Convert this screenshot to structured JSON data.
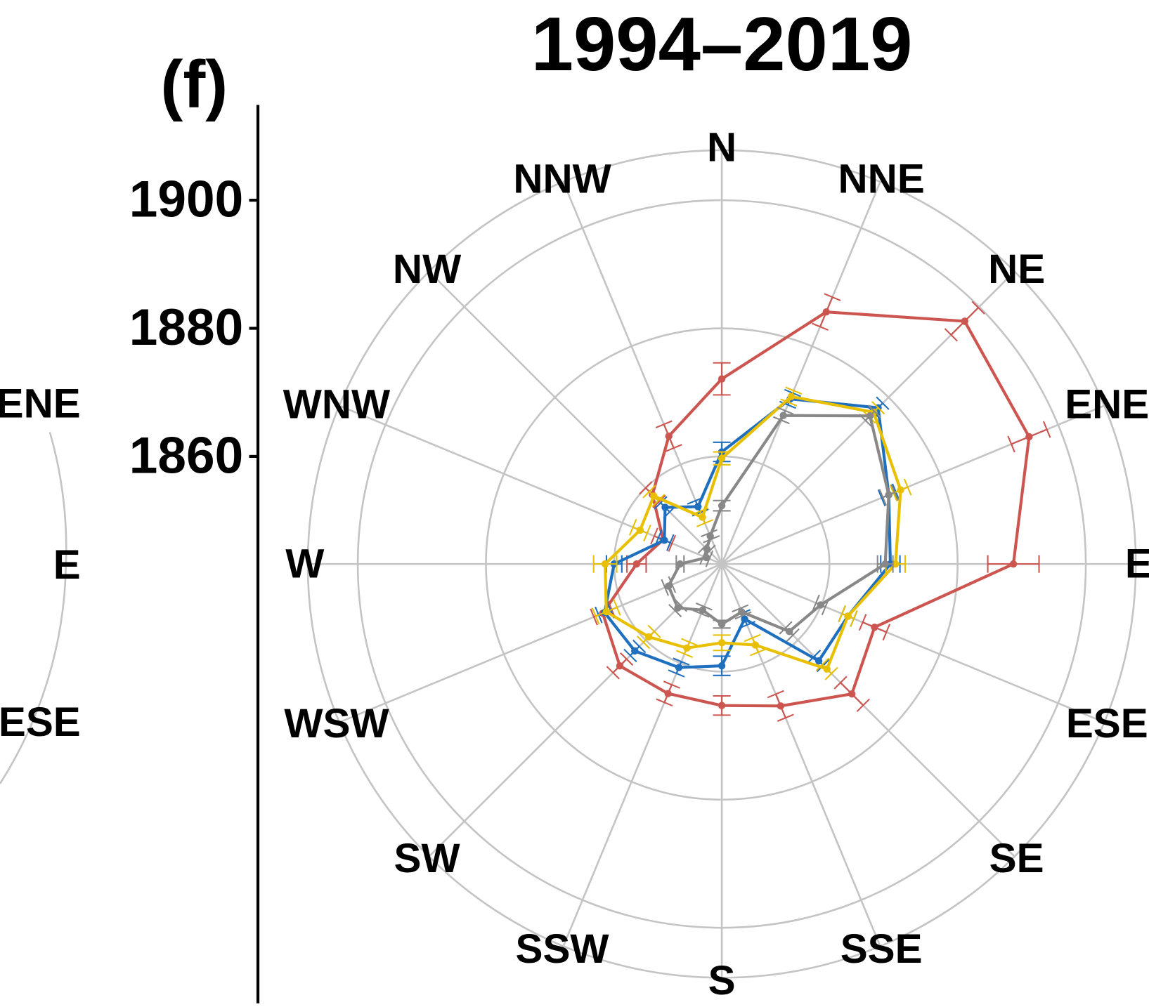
{
  "chart_data": {
    "type": "radar",
    "title": "1994–2019",
    "panel_label": "(f)",
    "fragment_labels": [
      "ENE",
      "E",
      "ESE"
    ],
    "categories": [
      "N",
      "NNE",
      "NE",
      "ENE",
      "E",
      "ESE",
      "SE",
      "SSE",
      "S",
      "SSW",
      "SW",
      "WSW",
      "W",
      "WNW",
      "NW",
      "NNW"
    ],
    "ylim": [
      1843.2,
      1907.8
    ],
    "yticks": [
      1860,
      1880,
      1900
    ],
    "grid": true,
    "series": [
      {
        "color": "#cc5550",
        "values": [
          1872.1,
          1885.8,
          1896.8,
          1895.1,
          1888.7,
          1869.0,
          1871.9,
          1867.2,
          1865.3,
          1865.1,
          1865.7,
          1863.3,
          1856.5,
          1853.1,
          1858.5,
          1864.8
        ],
        "errors": [
          2.5,
          2.5,
          3,
          3,
          4,
          2,
          2.5,
          2,
          1.5,
          1.5,
          1.5,
          1.5,
          1.5,
          1.5,
          1.5,
          2
        ]
      },
      {
        "color": "#1f6fbf",
        "values": [
          1860.7,
          1871.1,
          1877.7,
          1871.4,
          1869.5,
          1864.5,
          1864.6,
          1852.5,
          1859.1,
          1860.7,
          1862.4,
          1863.0,
          1860.0,
          1852.9,
          1855.7,
          1852.9
        ],
        "errors": [
          1.5,
          1,
          1,
          1.2,
          1.5,
          1,
          1,
          1,
          1.5,
          1,
          1,
          1,
          1.2,
          1,
          1,
          1
        ]
      },
      {
        "color": "#e8c000",
        "values": [
          1859.7,
          1871.5,
          1876.7,
          1873.4,
          1870.3,
          1864.5,
          1866.4,
          1856.9,
          1855.5,
          1857.4,
          1859.3,
          1862.7,
          1861.4,
          1857.0,
          1858.2,
          1851.1
        ],
        "errors": [
          1,
          1,
          1,
          1.2,
          1.5,
          1,
          1,
          1.2,
          1.2,
          1,
          1.2,
          1.8,
          1.8,
          1.2,
          1,
          1
        ]
      },
      {
        "color": "#888888",
        "values": [
          1852.3,
          1868.3,
          1875.9,
          1871.4,
          1868.7,
          1859.9,
          1858.1,
          1851.3,
          1852.6,
          1851.0,
          1852.9,
          1852.2,
          1849.7,
          1845.8,
          1846.5,
          1847.9
        ],
        "errors": [
          0.8,
          0.8,
          1,
          1,
          1.2,
          0.8,
          0.8,
          0.6,
          0.6,
          0.6,
          0.6,
          0.6,
          0.6,
          0.5,
          0.5,
          0.5
        ]
      }
    ]
  }
}
